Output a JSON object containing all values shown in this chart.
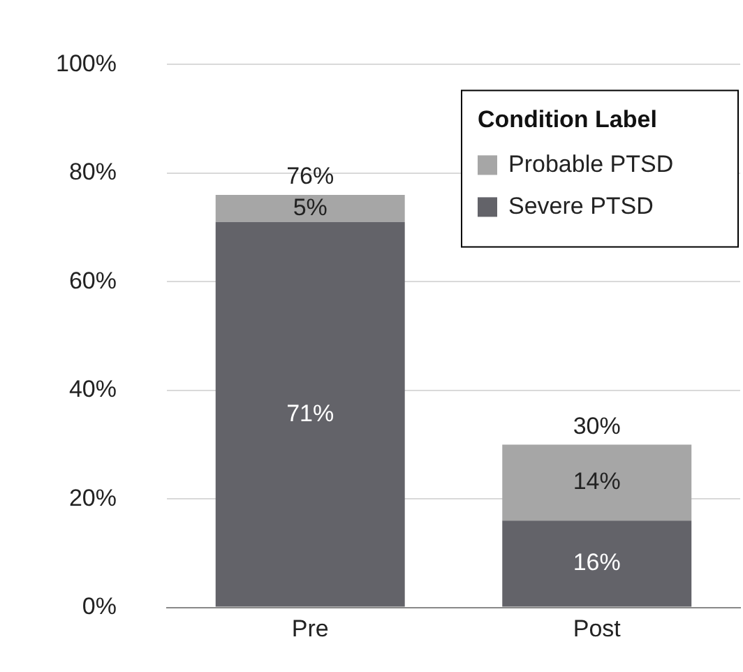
{
  "chart_data": {
    "type": "bar",
    "stacked": true,
    "categories": [
      "Pre",
      "Post"
    ],
    "series": [
      {
        "name": "Severe PTSD",
        "color": "#636369",
        "values": [
          71,
          16
        ],
        "value_labels": [
          "71%",
          "16%"
        ]
      },
      {
        "name": "Probable PTSD",
        "color": "#a6a6a6",
        "values": [
          5,
          14
        ],
        "value_labels": [
          "5%",
          "14%"
        ]
      }
    ],
    "ylim": [
      0,
      100
    ],
    "yticks": [
      {
        "value": 0,
        "label": "0%"
      },
      {
        "value": 20,
        "label": "20%"
      },
      {
        "value": 40,
        "label": "40%"
      },
      {
        "value": 60,
        "label": "60%"
      },
      {
        "value": 80,
        "label": "80%"
      },
      {
        "value": 100,
        "label": "100%"
      }
    ],
    "grid": "y",
    "legend": "top right",
    "legend_title": "Condition Label",
    "totals": [
      "76%",
      "30%"
    ]
  }
}
